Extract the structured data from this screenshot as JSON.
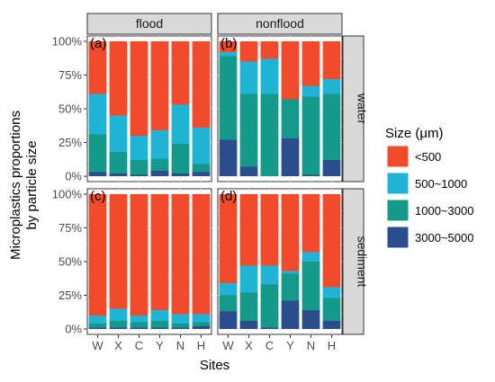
{
  "chart_data": {
    "type": "bar",
    "stacked": true,
    "ylabel": "Microplastics proportions\nby particle size",
    "xlabel": "Sites",
    "categories": [
      "W",
      "X",
      "C",
      "Y",
      "N",
      "H"
    ],
    "y_ticks": [
      "0%",
      "25%",
      "50%",
      "75%",
      "100%"
    ],
    "ylim": [
      0,
      100
    ],
    "col_facets": [
      "flood",
      "nonflood"
    ],
    "row_facets": [
      "water",
      "sediment"
    ],
    "legend": {
      "title": "Size (μm)",
      "position": "right",
      "items": [
        {
          "label": "<500",
          "color": "#f24b2b"
        },
        {
          "label": "500~1000",
          "color": "#1fb3d6"
        },
        {
          "label": "1000~3000",
          "color": "#15998a"
        },
        {
          "label": "3000~5000",
          "color": "#2b4d8c"
        }
      ]
    },
    "stack_order": [
      "3000~5000",
      "1000~3000",
      "500~1000",
      "<500"
    ],
    "colors": [
      "#2b4d8c",
      "#15998a",
      "#1fb3d6",
      "#f24b2b"
    ],
    "panels": [
      {
        "label": "(a)",
        "col": "flood",
        "row": "water",
        "values": [
          [
            3,
            28,
            30,
            39
          ],
          [
            2,
            16,
            27,
            55
          ],
          [
            1,
            11,
            18,
            70
          ],
          [
            4,
            9,
            21,
            66
          ],
          [
            2,
            22,
            29,
            47
          ],
          [
            3,
            6,
            27,
            64
          ]
        ]
      },
      {
        "label": "(b)",
        "col": "nonflood",
        "row": "water",
        "values": [
          [
            27,
            62,
            3,
            8
          ],
          [
            7,
            54,
            24,
            15
          ],
          [
            0,
            61,
            26,
            13
          ],
          [
            28,
            29,
            0,
            43
          ],
          [
            1,
            58,
            8,
            33
          ],
          [
            12,
            49,
            11,
            28
          ]
        ]
      },
      {
        "label": "(c)",
        "col": "flood",
        "row": "sediment",
        "values": [
          [
            1,
            3,
            6,
            90
          ],
          [
            1,
            5,
            9,
            85
          ],
          [
            1,
            4,
            5,
            90
          ],
          [
            1,
            5,
            8,
            86
          ],
          [
            1,
            3,
            7,
            89
          ],
          [
            2,
            3,
            6,
            89
          ]
        ]
      },
      {
        "label": "(d)",
        "col": "nonflood",
        "row": "sediment",
        "values": [
          [
            13,
            12,
            9,
            66
          ],
          [
            6,
            21,
            20,
            53
          ],
          [
            1,
            32,
            14,
            53
          ],
          [
            21,
            20,
            2,
            57
          ],
          [
            14,
            36,
            7,
            43
          ],
          [
            6,
            17,
            8,
            69
          ]
        ]
      }
    ],
    "grid": true
  }
}
